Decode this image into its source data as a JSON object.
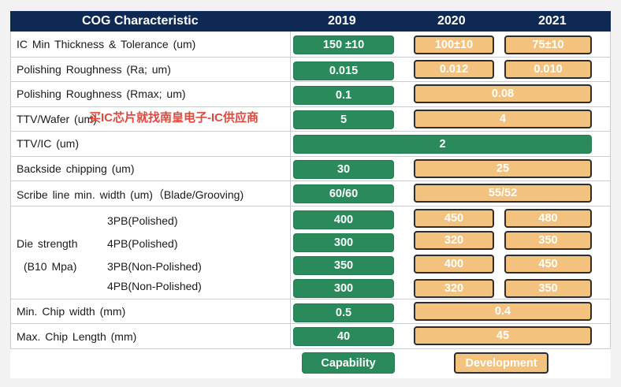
{
  "header": {
    "title": "COG Characteristic",
    "years": [
      "2019",
      "2020",
      "2021"
    ]
  },
  "rows": {
    "ic_thickness": {
      "label": "IC Min Thickness & Tolerance (um)",
      "v2019": "150 ±10",
      "v2020": "100±10",
      "v2021": "75±10"
    },
    "ra": {
      "label": "Polishing Roughness (Ra; um)",
      "v2019": "0.015",
      "v2020": "0.012",
      "v2021": "0.010"
    },
    "rmax": {
      "label": "Polishing Roughness (Rmax; um)",
      "v2019": "0.1",
      "v2020_2021": "0.08"
    },
    "ttv_wafer": {
      "label": "TTV/Wafer (um)",
      "v2019": "5",
      "v2020_2021": "4"
    },
    "ttv_ic": {
      "label": "TTV/IC (um)",
      "v_all": "2"
    },
    "backside": {
      "label": "Backside chipping (um)",
      "v2019": "30",
      "v2020_2021": "25"
    },
    "scribe": {
      "label": "Scribe line min. width (um)（Blade/Grooving)",
      "v2019": "60/60",
      "v2020_2021": "55/52"
    },
    "die": {
      "label1": "Die strength",
      "label2": "(B10 Mpa)",
      "sub": [
        {
          "label": "3PB(Polished)",
          "v2019": "400",
          "v2020": "450",
          "v2021": "480"
        },
        {
          "label": "4PB(Polished)",
          "v2019": "300",
          "v2020": "320",
          "v2021": "350"
        },
        {
          "label": "3PB(Non-Polished)",
          "v2019": "350",
          "v2020": "400",
          "v2021": "450"
        },
        {
          "label": "4PB(Non-Polished)",
          "v2019": "300",
          "v2020": "320",
          "v2021": "350"
        }
      ]
    },
    "chip_width": {
      "label": "Min. Chip width (mm)",
      "v2019": "0.5",
      "v2020_2021": "0.4"
    },
    "chip_length": {
      "label": "Max. Chip Length (mm)",
      "v2019": "40",
      "v2020_2021": "45"
    }
  },
  "watermark": "买IC芯片就找南皇电子-IC供应商",
  "legend": {
    "capability": "Capability",
    "development": "Development"
  },
  "colors": {
    "header": "#0e2a54",
    "capability": "#2a8a5c",
    "development": "#f2c27e"
  }
}
